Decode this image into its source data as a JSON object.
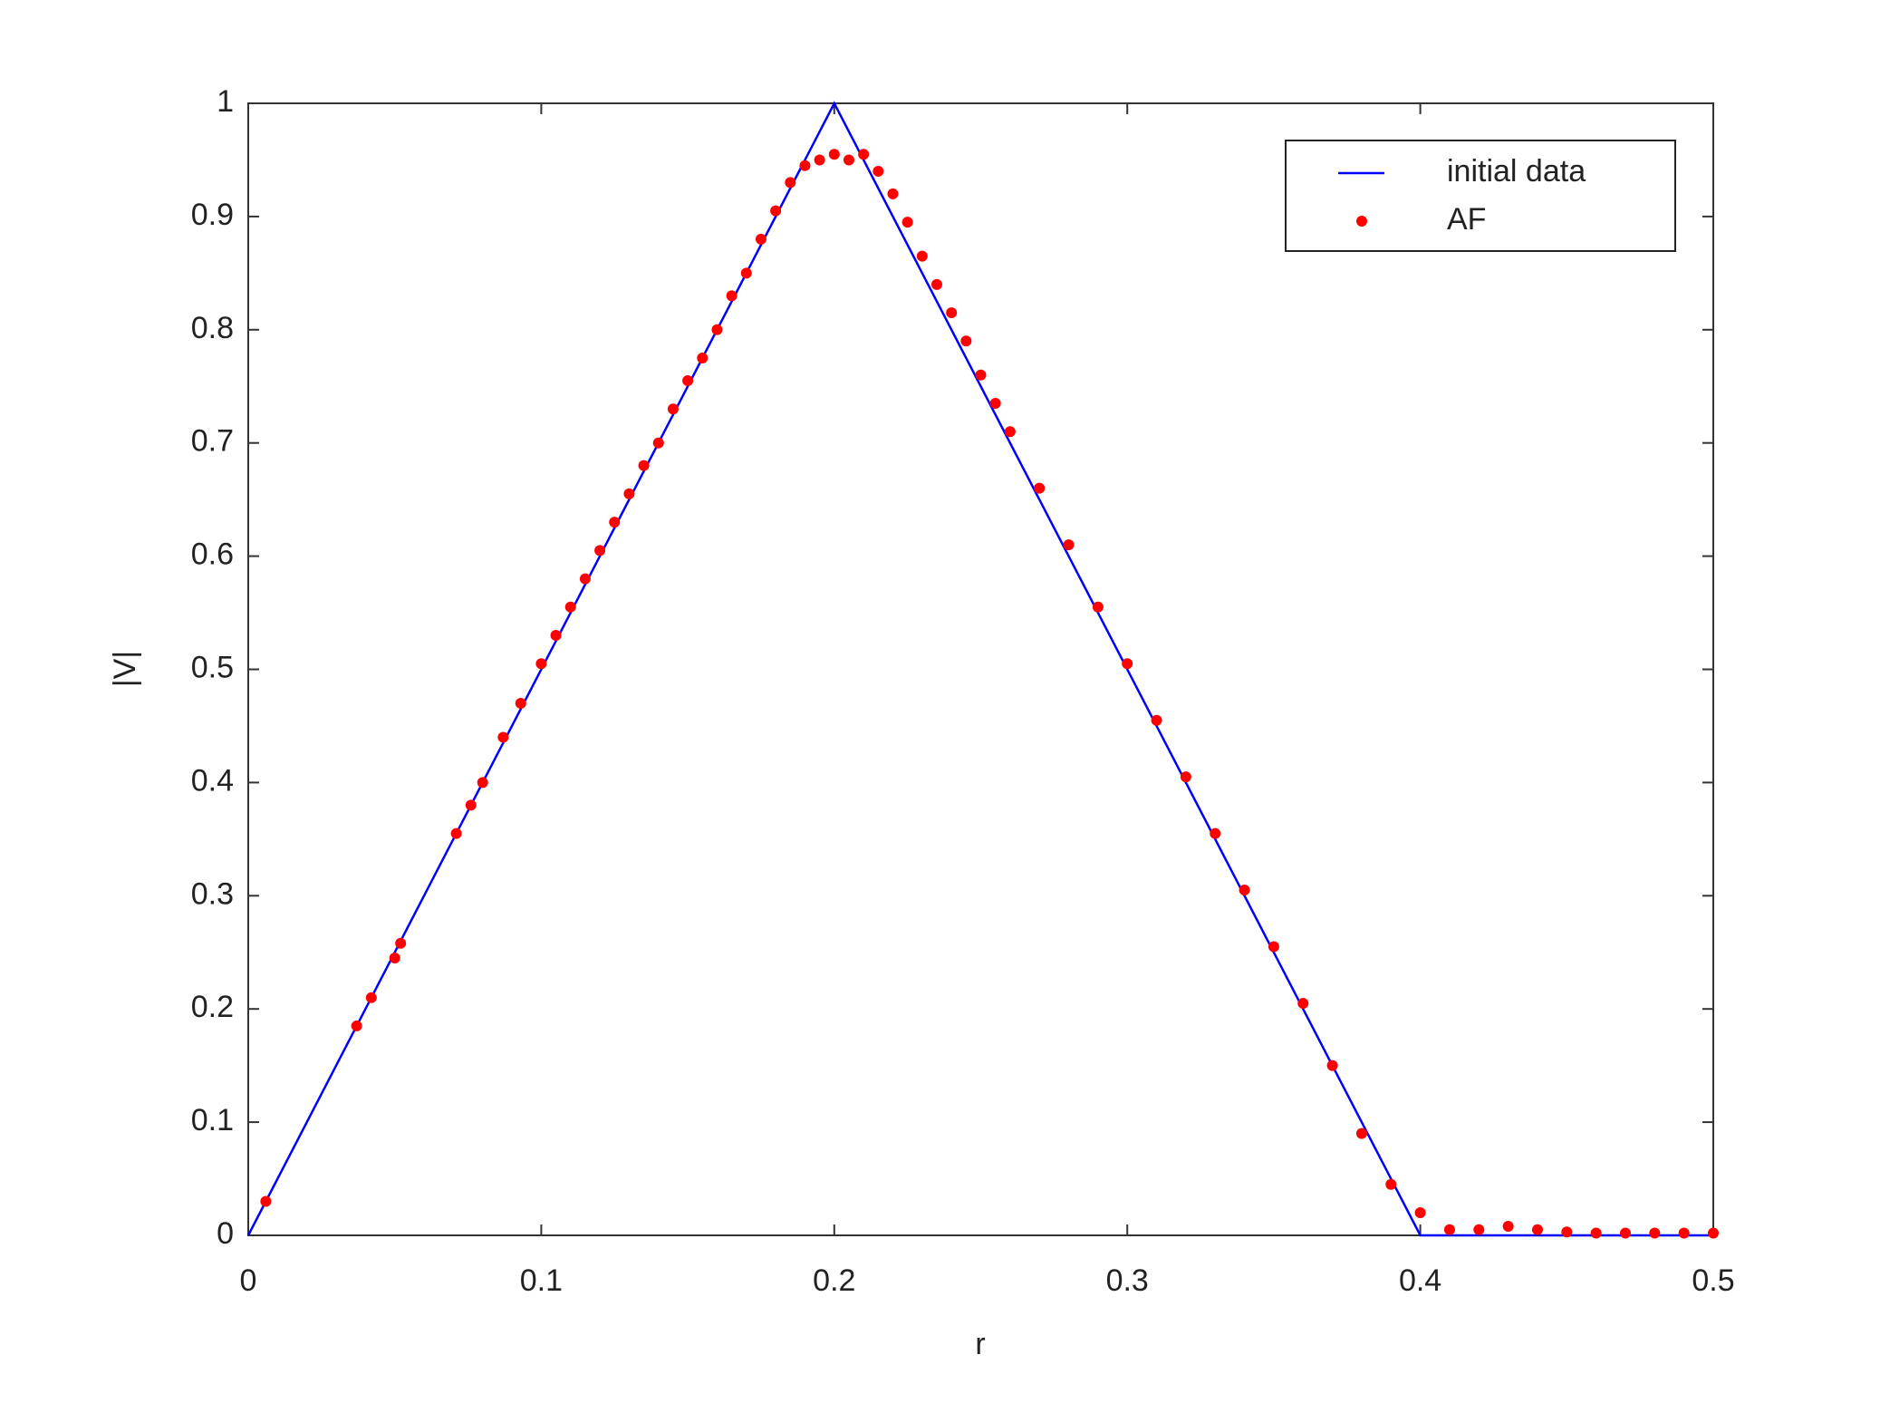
{
  "chart_data": {
    "type": "line_scatter",
    "xlabel": "r",
    "ylabel": "|V|",
    "xlim": [
      0,
      0.5
    ],
    "ylim": [
      0,
      1
    ],
    "xticks": [
      0,
      0.1,
      0.2,
      0.3,
      0.4,
      0.5
    ],
    "yticks": [
      0,
      0.1,
      0.2,
      0.3,
      0.4,
      0.5,
      0.6,
      0.7,
      0.8,
      0.9,
      1
    ],
    "legend": "upper right",
    "series": [
      {
        "name": "initial data",
        "kind": "line",
        "color": "#0000ff",
        "x": [
          0,
          0.2,
          0.4,
          0.5
        ],
        "values": [
          0,
          1,
          0,
          0
        ]
      },
      {
        "name": "AF",
        "kind": "scatter",
        "color": "#ff0000",
        "x": [
          0.006,
          0.037,
          0.042,
          0.05,
          0.052,
          0.071,
          0.076,
          0.08,
          0.087,
          0.093,
          0.1,
          0.105,
          0.11,
          0.115,
          0.12,
          0.125,
          0.13,
          0.135,
          0.14,
          0.145,
          0.15,
          0.155,
          0.16,
          0.165,
          0.17,
          0.175,
          0.18,
          0.185,
          0.19,
          0.195,
          0.2,
          0.205,
          0.21,
          0.215,
          0.22,
          0.225,
          0.23,
          0.235,
          0.24,
          0.245,
          0.25,
          0.255,
          0.26,
          0.27,
          0.28,
          0.29,
          0.3,
          0.31,
          0.32,
          0.33,
          0.34,
          0.35,
          0.36,
          0.37,
          0.38,
          0.39,
          0.4,
          0.41,
          0.42,
          0.43,
          0.44,
          0.45,
          0.46,
          0.47,
          0.48,
          0.49,
          0.5
        ],
        "values": [
          0.03,
          0.185,
          0.21,
          0.245,
          0.258,
          0.355,
          0.38,
          0.4,
          0.44,
          0.47,
          0.505,
          0.53,
          0.555,
          0.58,
          0.605,
          0.63,
          0.655,
          0.68,
          0.7,
          0.73,
          0.755,
          0.775,
          0.8,
          0.83,
          0.85,
          0.88,
          0.905,
          0.93,
          0.945,
          0.95,
          0.955,
          0.95,
          0.955,
          0.94,
          0.92,
          0.895,
          0.865,
          0.84,
          0.815,
          0.79,
          0.76,
          0.735,
          0.71,
          0.66,
          0.61,
          0.555,
          0.505,
          0.455,
          0.405,
          0.355,
          0.305,
          0.255,
          0.205,
          0.15,
          0.09,
          0.045,
          0.02,
          0.005,
          0.005,
          0.008,
          0.005,
          0.003,
          0.002,
          0.002,
          0.002,
          0.002,
          0.002
        ]
      }
    ]
  }
}
